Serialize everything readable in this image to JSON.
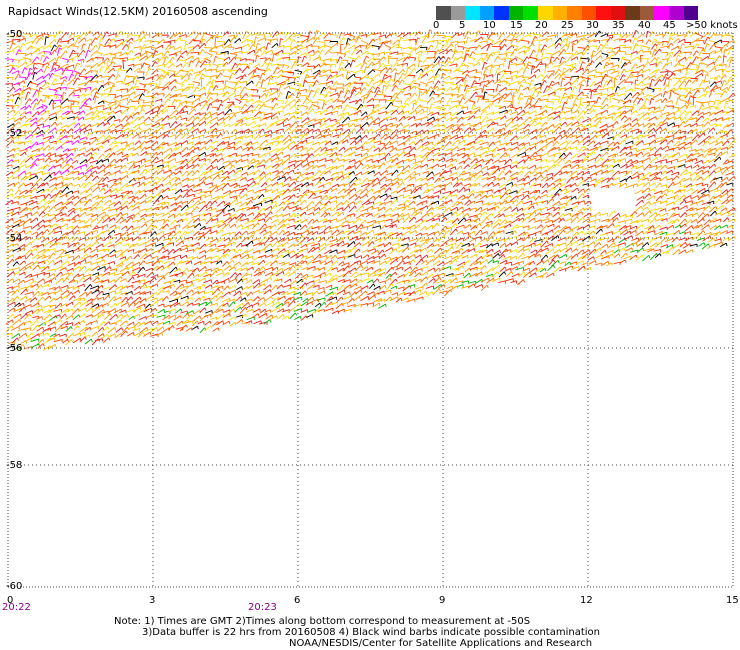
{
  "title": "Rapidsact Winds(12.5KM) 20160508 ascending",
  "legend": {
    "colors": [
      "#505050",
      "#9a9a9a",
      "#00e5ff",
      "#00a0ff",
      "#0032ff",
      "#00b400",
      "#00e000",
      "#ffd700",
      "#ffb000",
      "#ff8000",
      "#ff5000",
      "#ff1010",
      "#e01010",
      "#6b3a1a",
      "#9b5a3a",
      "#ff00ff",
      "#b000d0",
      "#500090"
    ],
    "labels": [
      "0",
      "5",
      "10",
      "15",
      "20",
      "25",
      "30",
      "35",
      "40",
      "45",
      ">50 knots"
    ]
  },
  "axes": {
    "lat_labels": [
      "-50",
      "-52",
      "-54",
      "-56",
      "-58",
      "-60"
    ],
    "lon_labels": [
      "0",
      "3",
      "6",
      "9",
      "12",
      "15"
    ],
    "time_labels": [
      "20:22",
      "20:23"
    ]
  },
  "notes": {
    "line1": "Note: 1) Times are GMT 2)Times along bottom correspond to measurement at -50S",
    "line2": "3)Data buffer is 22 hrs from 20160508 4) Black wind barbs indicate possible contamination",
    "line3": "NOAA/NESDIS/Center for Satellite Applications and Research"
  },
  "swath_colors": [
    "#ff2a00",
    "#ff6a00",
    "#ff9a00",
    "#ffc400",
    "#ffe000",
    "#e61e1e",
    "#ff4400",
    "#ffb400"
  ],
  "highlight_colors": [
    "#ff00ff",
    "#00b400",
    "#000000"
  ]
}
